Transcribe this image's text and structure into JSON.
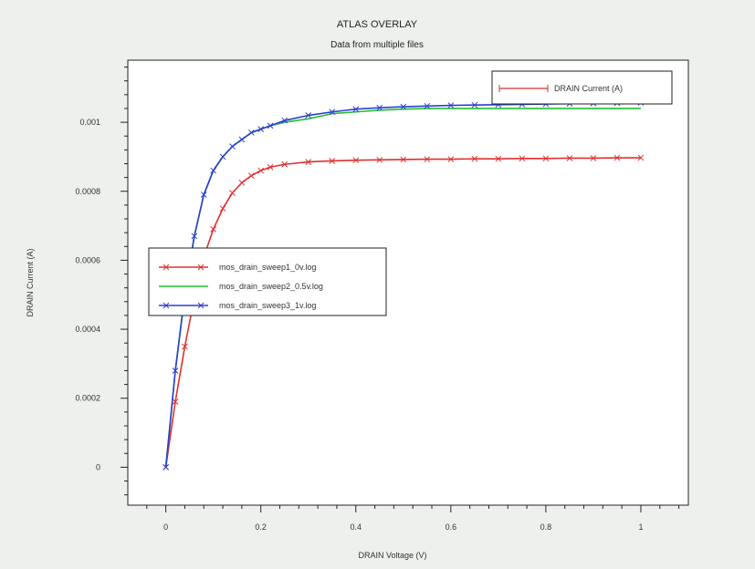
{
  "chart_data": {
    "type": "line",
    "title": "ATLAS OVERLAY",
    "subtitle": "Data from multiple files",
    "xlabel": "DRAIN Voltage (V)",
    "ylabel": "DRAIN Current (A)",
    "xlim": [
      -0.08,
      1.1
    ],
    "ylim": [
      -0.00011,
      0.00118
    ],
    "x_ticks": [
      0,
      0.2,
      0.4,
      0.6,
      0.8,
      1
    ],
    "x_tick_labels": [
      "0",
      "0.2",
      "0.4",
      "0.6",
      "0.8",
      "1"
    ],
    "y_ticks": [
      0,
      0.0002,
      0.0004,
      0.0006,
      0.0008,
      0.001
    ],
    "y_tick_labels": [
      "0",
      "0.0002",
      "0.0004",
      "0.0006",
      "0.0008",
      "0.001"
    ],
    "grid": false,
    "top_legend": {
      "placement": "top-right",
      "label": "DRAIN Current (A)",
      "color": "#d03030"
    },
    "legend_placement": "center-left",
    "x": [
      0,
      0.02,
      0.04,
      0.06,
      0.08,
      0.1,
      0.12,
      0.14,
      0.16,
      0.18,
      0.2,
      0.22,
      0.25,
      0.3,
      0.35,
      0.4,
      0.45,
      0.5,
      0.55,
      0.6,
      0.65,
      0.7,
      0.75,
      0.8,
      0.85,
      0.9,
      0.95,
      1.0
    ],
    "series": [
      {
        "name": "mos_drain_sweep1_0v.log",
        "color": "#e03030",
        "values": [
          0,
          0.00019,
          0.00035,
          0.00049,
          0.00061,
          0.00069,
          0.00075,
          0.000795,
          0.000825,
          0.000845,
          0.00086,
          0.00087,
          0.000878,
          0.000885,
          0.000888,
          0.00089,
          0.000891,
          0.000892,
          0.000893,
          0.000893,
          0.000894,
          0.000894,
          0.000895,
          0.000895,
          0.000896,
          0.000896,
          0.000897,
          0.000897
        ]
      },
      {
        "name": "mos_drain_sweep2_0.5v.log",
        "color": "#20c030",
        "values": [
          0,
          0.00028,
          0.0005,
          0.00067,
          0.00079,
          0.00086,
          0.0009,
          0.00093,
          0.00095,
          0.00097,
          0.00098,
          0.00099,
          0.001,
          0.00101,
          0.001025,
          0.00103,
          0.001035,
          0.001038,
          0.00104,
          0.00104,
          0.00104,
          0.00104,
          0.00104,
          0.00104,
          0.00104,
          0.00104,
          0.00104,
          0.00104
        ]
      },
      {
        "name": "mos_drain_sweep3_1v.log",
        "color": "#2a3fd0",
        "values": [
          0,
          0.00028,
          0.0005,
          0.00067,
          0.00079,
          0.00086,
          0.0009,
          0.00093,
          0.00095,
          0.00097,
          0.00098,
          0.00099,
          0.001005,
          0.00102,
          0.00103,
          0.001038,
          0.001042,
          0.001045,
          0.001047,
          0.001049,
          0.00105,
          0.001051,
          0.001052,
          0.001053,
          0.001054,
          0.001055,
          0.001056,
          0.001057
        ]
      }
    ]
  }
}
